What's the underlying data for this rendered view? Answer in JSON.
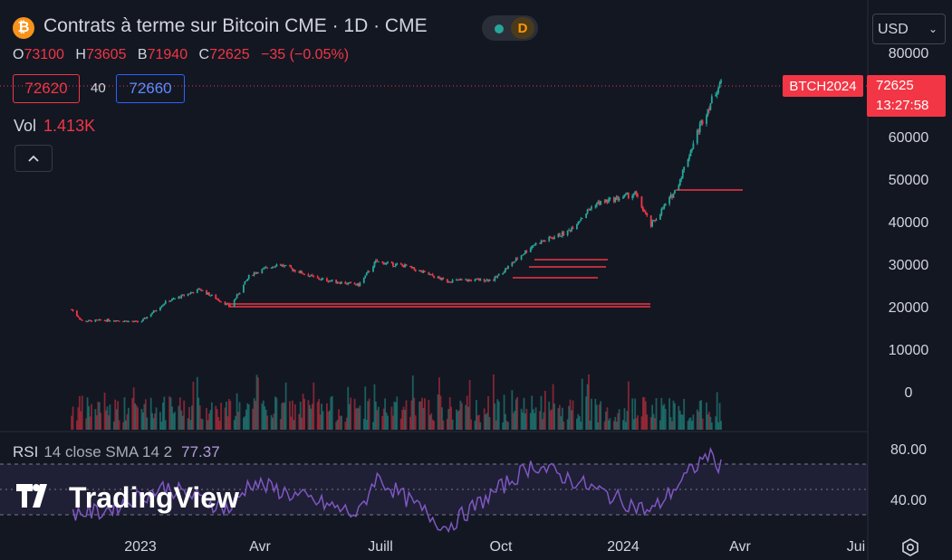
{
  "header": {
    "coin_icon": "₿",
    "title": "Contrats à terme sur Bitcoin CME · 1D · CME",
    "status_letter": "D",
    "currency": "USD"
  },
  "ohlc": {
    "o_label": "O",
    "o_value": "73100",
    "h_label": "H",
    "h_value": "73605",
    "b_label": "B",
    "b_value": "71940",
    "c_label": "C",
    "c_value": "72625",
    "change": "−35 (−0.05%)"
  },
  "quote": {
    "bid": "72620",
    "spread": "40",
    "ask": "72660"
  },
  "volume": {
    "label": "Vol",
    "value": "1.413K"
  },
  "price_axis": [
    "80000",
    "60000",
    "50000",
    "40000",
    "30000",
    "20000",
    "10000",
    "0"
  ],
  "last_price": {
    "symbol": "BTCH2024",
    "price": "72625",
    "countdown": "13:27:58"
  },
  "rsi": {
    "label": "RSI",
    "params": "14 close SMA 14 2",
    "value": "77.37",
    "ticks": [
      "80.00",
      "40.00"
    ]
  },
  "time_axis": [
    "2023",
    "Avr",
    "Juill",
    "Oct",
    "2024",
    "Avr",
    "Jui"
  ],
  "branding": {
    "logo_text": "TradingView"
  },
  "colors": {
    "up": "#26a69a",
    "down": "#f23645",
    "rsi": "#7e57c2",
    "background": "#131722"
  },
  "chart_data": {
    "type": "candlestick",
    "symbol": "BTCH2024",
    "y_range": [
      0,
      80000
    ],
    "x_labels": [
      "2023",
      "Avr",
      "Juill",
      "Oct",
      "2024",
      "Avr",
      "Jui"
    ],
    "close_series": [
      {
        "date": "2022-11-10",
        "close": 19800
      },
      {
        "date": "2022-11-18",
        "close": 17000
      },
      {
        "date": "2022-12-10",
        "close": 17300
      },
      {
        "date": "2023-01-01",
        "close": 16800
      },
      {
        "date": "2023-01-20",
        "close": 21500
      },
      {
        "date": "2023-02-15",
        "close": 24500
      },
      {
        "date": "2023-03-10",
        "close": 20500
      },
      {
        "date": "2023-03-25",
        "close": 28000
      },
      {
        "date": "2023-04-15",
        "close": 30500
      },
      {
        "date": "2023-05-15",
        "close": 27000
      },
      {
        "date": "2023-06-15",
        "close": 25500
      },
      {
        "date": "2023-06-28",
        "close": 31000
      },
      {
        "date": "2023-07-20",
        "close": 30000
      },
      {
        "date": "2023-08-20",
        "close": 26500
      },
      {
        "date": "2023-09-25",
        "close": 26800
      },
      {
        "date": "2023-10-25",
        "close": 35000
      },
      {
        "date": "2023-11-20",
        "close": 38000
      },
      {
        "date": "2023-12-10",
        "close": 44500
      },
      {
        "date": "2024-01-10",
        "close": 47000
      },
      {
        "date": "2024-01-22",
        "close": 39500
      },
      {
        "date": "2024-02-10",
        "close": 48000
      },
      {
        "date": "2024-02-28",
        "close": 63000
      },
      {
        "date": "2024-03-14",
        "close": 73000
      },
      {
        "date": "2024-03-16",
        "close": 72625
      }
    ],
    "rsi_series": [
      {
        "date": "2022-12-01",
        "rsi": 42
      },
      {
        "date": "2023-01-20",
        "rsi": 62
      },
      {
        "date": "2023-03-10",
        "rsi": 44
      },
      {
        "date": "2023-03-25",
        "rsi": 66
      },
      {
        "date": "2023-06-15",
        "rsi": 40
      },
      {
        "date": "2023-06-28",
        "rsi": 70
      },
      {
        "date": "2023-08-20",
        "rsi": 30
      },
      {
        "date": "2023-10-25",
        "rsi": 80
      },
      {
        "date": "2024-01-22",
        "rsi": 42
      },
      {
        "date": "2024-03-05",
        "rsi": 88
      },
      {
        "date": "2024-03-16",
        "rsi": 77.37
      }
    ]
  }
}
